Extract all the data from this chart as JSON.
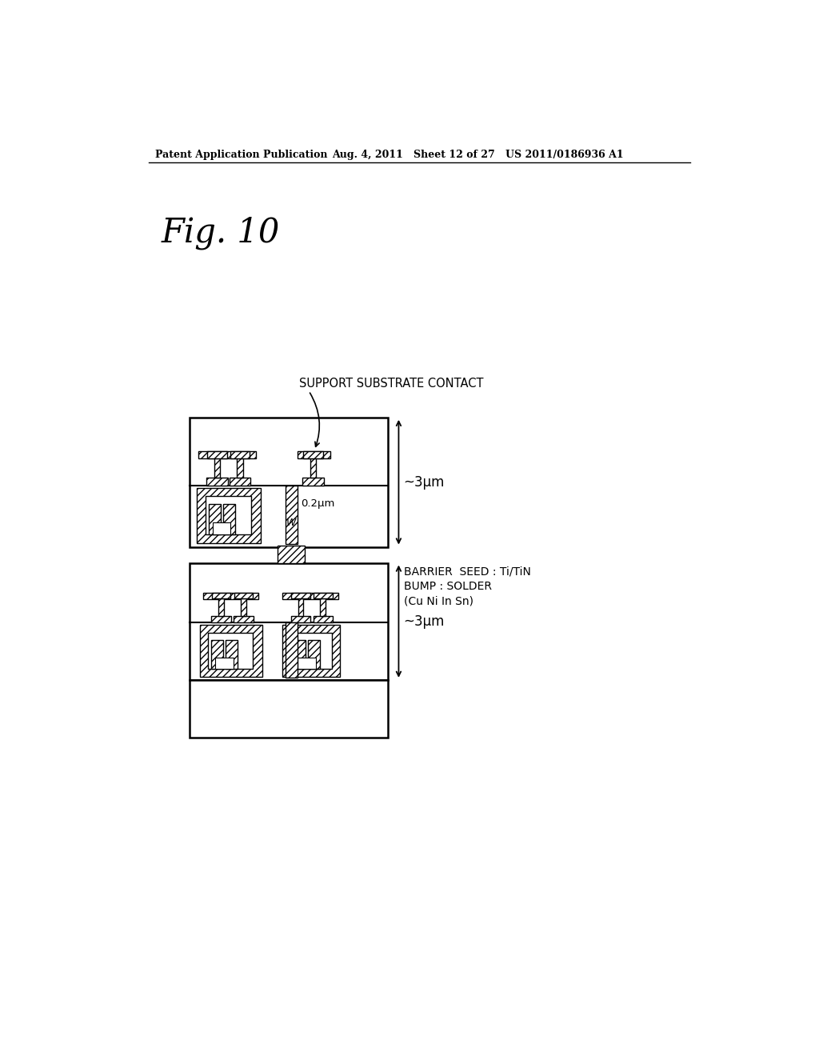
{
  "header_left": "Patent Application Publication",
  "header_mid": "Aug. 4, 2011   Sheet 12 of 27",
  "header_right": "US 2011/0186936 A1",
  "fig_label": "Fig. 10",
  "label_support": "SUPPORT SUBSTRATE CONTACT",
  "label_barrier": "BARRIER  SEED : Ti/TiN\nBUMP : SOLDER\n(Cu Ni In Sn)",
  "label_3um_top": "~3μm",
  "label_3um_bot": "~3μm",
  "label_02um": "0.2μm",
  "label_W": "W",
  "bg_color": "#ffffff",
  "line_color": "#000000"
}
